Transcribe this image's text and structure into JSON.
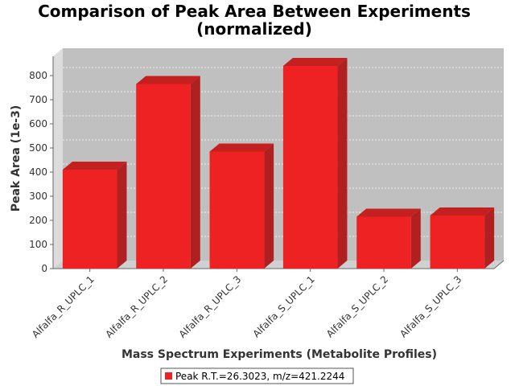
{
  "chart_data": {
    "type": "bar",
    "title_line1": "Comparison of Peak Area Between Experiments",
    "title_line2": "(normalized)",
    "xlabel": "Mass Spectrum Experiments (Metabolite Profiles)",
    "ylabel": "Peak Area (1e-3)",
    "categories": [
      "Alfalfa_R_UPLC_1",
      "Alfalfa_R_UPLC_2",
      "Alfalfa_R_UPLC_3",
      "Alfalfa_S_UPLC_1",
      "Alfalfa_S_UPLC_2",
      "Alfalfa_S_UPLC_3"
    ],
    "series": [
      {
        "name": "Peak R.T.=26.3023, m/z=421.2244",
        "values": [
          410,
          765,
          485,
          840,
          215,
          220
        ],
        "color": "#ee2222"
      }
    ],
    "ylim": [
      0,
      880
    ],
    "yticks": [
      0,
      100,
      200,
      300,
      400,
      500,
      600,
      700,
      800
    ],
    "grid": true,
    "legend_position": "bottom",
    "colors": {
      "plot_background": "#c0c0c0",
      "wall_side": "#dcdcdc",
      "floor": "#d0d0d0",
      "bar_front": "#ee2222",
      "bar_top": "#c42020",
      "bar_side": "#b02020"
    }
  }
}
